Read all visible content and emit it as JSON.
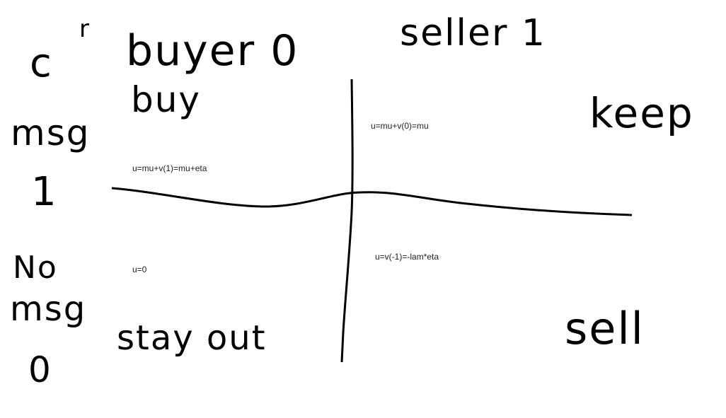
{
  "header": {
    "buyer": "buyer 0",
    "seller": "seller 1",
    "corner": [
      "c",
      "r"
    ]
  },
  "rows": {
    "top": [
      "msg",
      "1"
    ],
    "bottom": [
      "No",
      "msg",
      "0"
    ]
  },
  "actions": {
    "buy": "buy",
    "keep": "keep",
    "stay_out": "stay out",
    "sell": "sell"
  },
  "quadrants": {
    "top_left": "u=mu+v(1)=mu+eta",
    "top_right": "u=mu+v(0)=mu",
    "bottom_left": "u=0",
    "bottom_right": "u=v(-1)=-lam*eta"
  }
}
